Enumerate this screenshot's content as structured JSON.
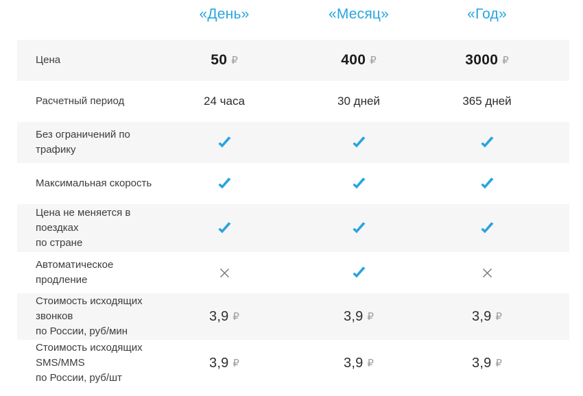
{
  "colors": {
    "accent_blue": "#29a5de",
    "cross_gray": "#73737b",
    "row_stripe_gray": "#f6f6f6",
    "ruble_gray": "#9d9d9d"
  },
  "table": {
    "column_headers": [
      "«День»",
      "«Месяц»",
      "«Год»"
    ],
    "rows": [
      {
        "label": "Цена",
        "type": "price",
        "cells": [
          {
            "value": "50",
            "suffix": "₽"
          },
          {
            "value": "400",
            "suffix": "₽"
          },
          {
            "value": "3000",
            "suffix": "₽"
          }
        ]
      },
      {
        "label": "Расчетный период",
        "type": "period",
        "cells": [
          {
            "value": "24 часа"
          },
          {
            "value": "30 дней"
          },
          {
            "value": "365 дней"
          }
        ]
      },
      {
        "label": "Без ограничений по трафику",
        "type": "feature",
        "cells": [
          {
            "icon": "check"
          },
          {
            "icon": "check"
          },
          {
            "icon": "check"
          }
        ]
      },
      {
        "label": "Максимальная скорость",
        "type": "feature",
        "cells": [
          {
            "icon": "check"
          },
          {
            "icon": "check"
          },
          {
            "icon": "check"
          }
        ]
      },
      {
        "label": "Цена не меняется в поездках\nпо стране",
        "type": "feature",
        "cells": [
          {
            "icon": "check"
          },
          {
            "icon": "check"
          },
          {
            "icon": "check"
          }
        ]
      },
      {
        "label": "Автоматическое продление",
        "type": "feature",
        "cells": [
          {
            "icon": "cross"
          },
          {
            "icon": "check"
          },
          {
            "icon": "cross"
          }
        ]
      },
      {
        "label": "Стоимость исходящих звонков\nпо России, руб/мин",
        "type": "rate",
        "cells": [
          {
            "value": "3,9",
            "suffix": "₽"
          },
          {
            "value": "3,9",
            "suffix": "₽"
          },
          {
            "value": "3,9",
            "suffix": "₽"
          }
        ]
      },
      {
        "label": "Стоимость исходящих SMS/MMS\nпо России, руб/шт",
        "type": "rate",
        "cells": [
          {
            "value": "3,9",
            "suffix": "₽"
          },
          {
            "value": "3,9",
            "suffix": "₽"
          },
          {
            "value": "3,9",
            "suffix": "₽"
          }
        ]
      }
    ]
  }
}
